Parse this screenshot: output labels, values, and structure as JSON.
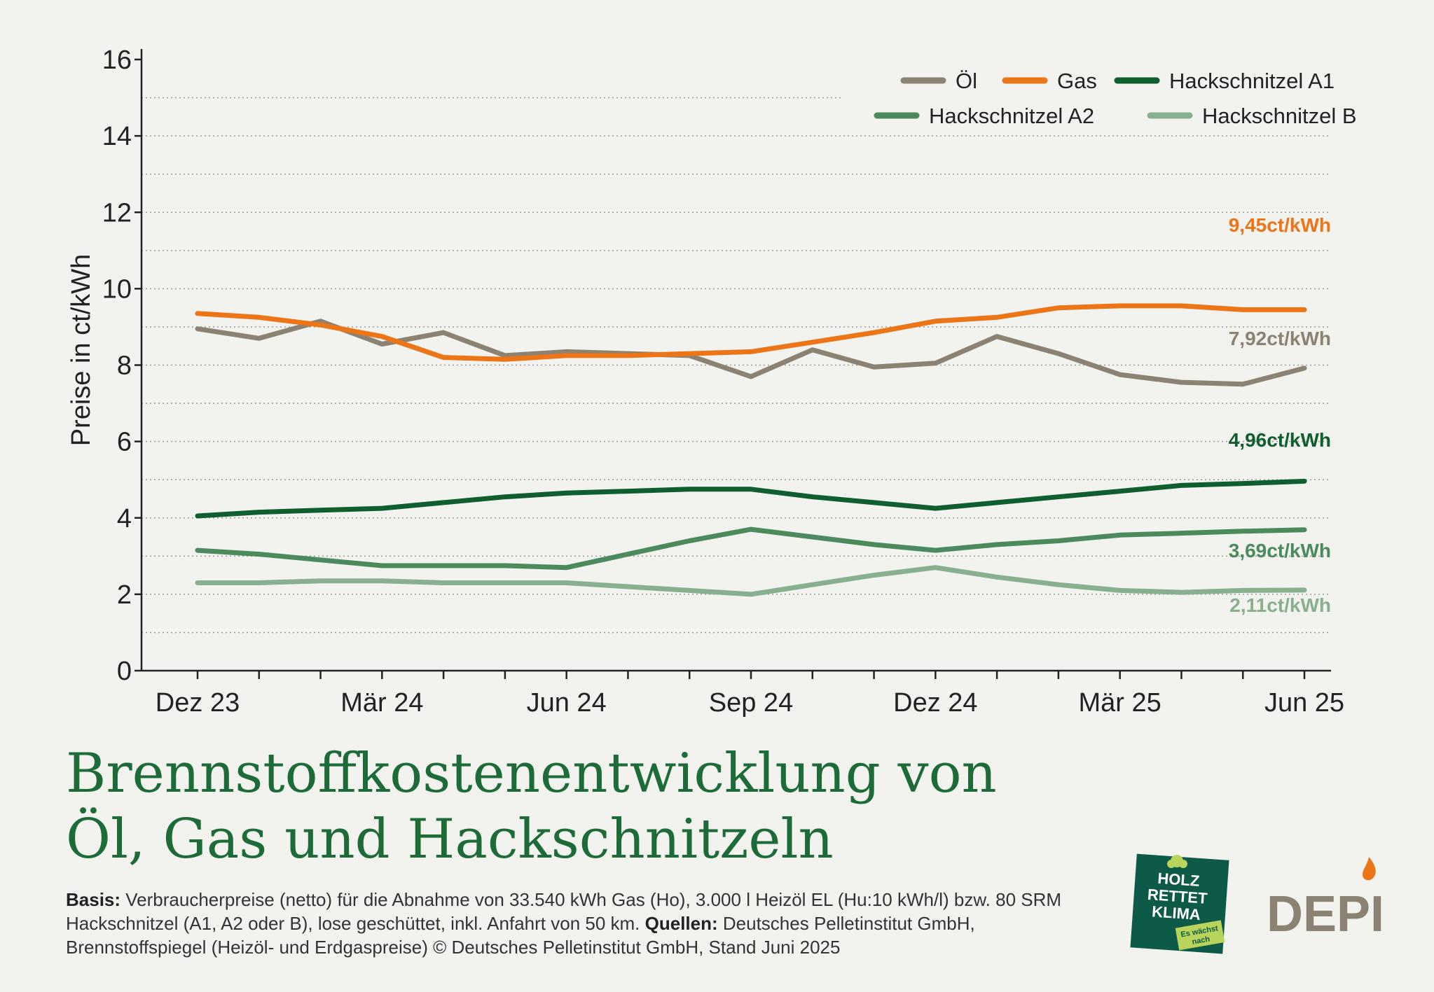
{
  "chart_data": {
    "type": "line",
    "title": "Brennstoffkostenentwicklung von Öl, Gas und Hackschnitzeln",
    "title_lines": [
      "Brennstoffkostenentwicklung von",
      "Öl, Gas und Hackschnitzeln"
    ],
    "ylabel": "Preise in ct/kWh",
    "xlabel": "",
    "ylim": [
      0,
      16
    ],
    "yticks": [
      "0",
      "2",
      "4",
      "6",
      "8",
      "10",
      "12",
      "14",
      "16"
    ],
    "grid": "horizontal dotted",
    "legend_position": "top-right",
    "x": [
      "Dez 23",
      "Jan 24",
      "Feb 24",
      "Mär 24",
      "Apr 24",
      "Mai 24",
      "Jun 24",
      "Jul 24",
      "Aug 24",
      "Sep 24",
      "Okt 24",
      "Nov 24",
      "Dez 24",
      "Jan 25",
      "Feb 25",
      "Mär 25",
      "Apr 25",
      "Mai 25",
      "Jun 25"
    ],
    "xtick_labels": [
      "Dez 23",
      "Mär 24",
      "Jun 24",
      "Sep 24",
      "Dez 24",
      "Mär 25",
      "Jun 25"
    ],
    "series": [
      {
        "name": "Öl",
        "color": "#8b8271",
        "values": [
          8.95,
          8.7,
          9.15,
          8.55,
          8.85,
          8.25,
          8.35,
          8.3,
          8.25,
          7.7,
          8.4,
          7.95,
          8.05,
          8.75,
          8.3,
          7.75,
          7.55,
          7.5,
          7.92
        ],
        "end_label": "7,92ct/kWh"
      },
      {
        "name": "Gas",
        "color": "#ec7518",
        "values": [
          9.35,
          9.25,
          9.05,
          8.75,
          8.2,
          8.15,
          8.25,
          8.25,
          8.3,
          8.35,
          8.6,
          8.85,
          9.15,
          9.25,
          9.5,
          9.55,
          9.55,
          9.45,
          9.45
        ],
        "end_label": "9,45ct/kWh"
      },
      {
        "name": "Hackschnitzel A1",
        "color": "#0f5e2d",
        "values": [
          4.05,
          4.15,
          4.2,
          4.25,
          4.4,
          4.55,
          4.65,
          4.7,
          4.75,
          4.75,
          4.55,
          4.4,
          4.25,
          4.4,
          4.55,
          4.7,
          4.85,
          4.9,
          4.96
        ],
        "end_label": "4,96ct/kWh"
      },
      {
        "name": "Hackschnitzel A2",
        "color": "#4b8a5c",
        "values": [
          3.15,
          3.05,
          2.9,
          2.75,
          2.75,
          2.75,
          2.7,
          3.05,
          3.4,
          3.7,
          3.5,
          3.3,
          3.15,
          3.3,
          3.4,
          3.55,
          3.6,
          3.65,
          3.69
        ],
        "end_label": "3,69ct/kWh"
      },
      {
        "name": "Hackschnitzel B",
        "color": "#88b08f",
        "values": [
          2.3,
          2.3,
          2.35,
          2.35,
          2.3,
          2.3,
          2.3,
          2.2,
          2.1,
          2.0,
          2.25,
          2.5,
          2.7,
          2.45,
          2.25,
          2.1,
          2.05,
          2.1,
          2.11
        ],
        "end_label": "2,11ct/kWh"
      }
    ]
  },
  "footer": {
    "basis_label": "Basis:",
    "basis_text": " Verbraucherpreise (netto) für die Abnahme von 33.540 kWh Gas (Ho), 3.000 l Heizöl EL (Hu:10 kWh/l) bzw. 80 SRM Hackschnitzel (A1, A2 oder B), lose geschüttet, inkl. Anfahrt von 50 km. ",
    "sources_label": "Quellen:",
    "sources_text": " Deutsches Pelletinstitut GmbH, Brennstoffspiegel (Heizöl- und Erdgaspreise) © Deutsches Pelletinstitut GmbH, Stand Juni 2025"
  },
  "logos": {
    "holz_lines": [
      "HOLZ",
      "RETTET",
      "KLIMA"
    ],
    "holz_tagline_lines": [
      "Es wächst",
      "nach"
    ],
    "holz_bg": "#0e5a48",
    "holz_accent": "#b8d45a",
    "depi_text": "DEPI",
    "depi_color": "#8b8271",
    "depi_flame": "#ec7518"
  }
}
